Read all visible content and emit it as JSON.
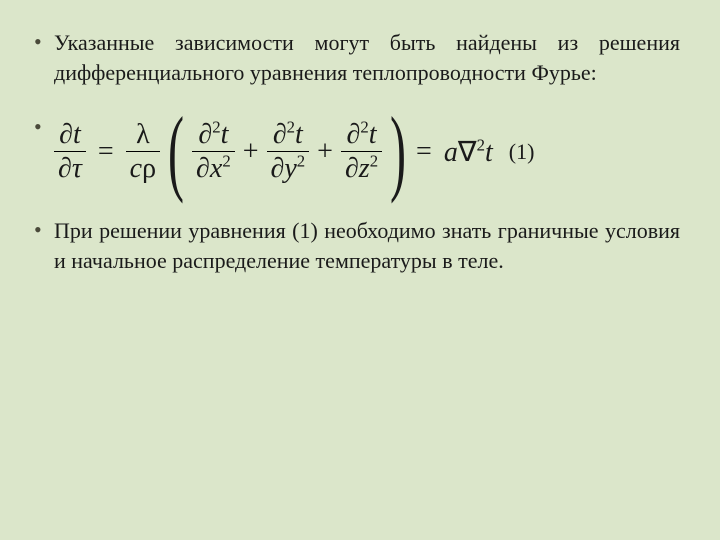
{
  "background_color": "#dbe6ca",
  "text_color": "#1a1a1a",
  "font_family": "Times New Roman",
  "paragraphs": {
    "p1": "Указанные зависимости могут быть найдены из решения дифференциального уравнения теплопроводности Фурье:",
    "p2": "При решении уравнения (1) необходимо знать граничные условия и начальное распределение температуры в теле."
  },
  "equation": {
    "lhs_num": "∂t",
    "lhs_den": "∂τ",
    "eq1": "=",
    "coef_num": "λ",
    "coef_den_c": "c",
    "coef_den_rho": "ρ",
    "paren_open": "(",
    "term1_num_d2": "∂",
    "term1_num_t": "t",
    "term1_den_dx": "∂x",
    "plus1": "+",
    "term2_num_t": "t",
    "term2_den_dy": "∂y",
    "plus2": "+",
    "term3_num_t": "t",
    "term3_den_dz": "∂z",
    "paren_close": ")",
    "eq2": "=",
    "rhs_a": "a",
    "rhs_nab": "∇",
    "rhs_t": "t",
    "number": "(1)",
    "sup2": "2"
  }
}
